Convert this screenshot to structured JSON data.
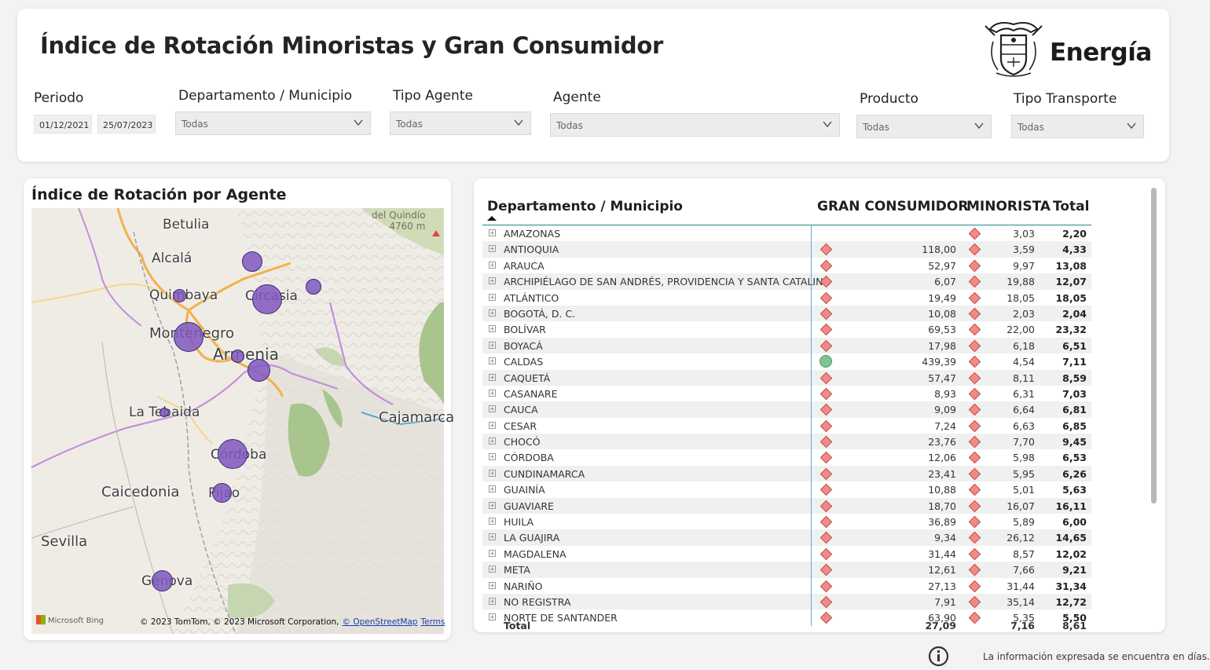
{
  "header": {
    "title": "Índice de Rotación Minoristas y Gran Consumidor",
    "logo_text": "Energía"
  },
  "filters": {
    "periodo": {
      "label": "Periodo",
      "start": "01/12/2021",
      "end": "25/07/2023"
    },
    "departamento": {
      "label": "Departamento / Municipio",
      "value": "Todas"
    },
    "tipo_agente": {
      "label": "Tipo Agente",
      "value": "Todas"
    },
    "agente": {
      "label": "Agente",
      "value": "Todas"
    },
    "producto": {
      "label": "Producto",
      "value": "Todas"
    },
    "tipo_transporte": {
      "label": "Tipo Transporte",
      "value": "Todas"
    }
  },
  "map": {
    "title": "Índice de Rotación por Agente",
    "cities": [
      "Betulia",
      "Alcalá",
      "Quimbaya",
      "Circasia",
      "Montenegro",
      "Armenia",
      "La Tebaida",
      "Cajamarca",
      "Córdoba",
      "Caicedonia",
      "Pijao",
      "Sevilla",
      "Genova"
    ],
    "peak_label": "del Quindío",
    "peak_elevation": "4760 m",
    "bing_label": "Microsoft Bing",
    "attribution": "© 2023 TomTom, © 2023 Microsoft Corporation,",
    "osm_link": "© OpenStreetMap",
    "terms_link": "Terms"
  },
  "table": {
    "columns": [
      "Departamento / Municipio",
      "GRAN CONSUMIDOR",
      "MINORISTA",
      "Total"
    ],
    "rows": [
      {
        "name": "AMAZONAS",
        "gc": "",
        "gc_icon": "none",
        "mi": "3,03",
        "total": "2,20"
      },
      {
        "name": "ANTIOQUIA",
        "gc": "118,00",
        "gc_icon": "diamond",
        "mi": "3,59",
        "total": "4,33"
      },
      {
        "name": "ARAUCA",
        "gc": "52,97",
        "gc_icon": "diamond",
        "mi": "9,97",
        "total": "13,08"
      },
      {
        "name": "ARCHIPIÉLAGO DE SAN ANDRÉS, PROVIDENCIA Y SANTA CATALINA",
        "gc": "6,07",
        "gc_icon": "diamond",
        "mi": "19,88",
        "total": "12,07"
      },
      {
        "name": "ATLÁNTICO",
        "gc": "19,49",
        "gc_icon": "diamond",
        "mi": "18,05",
        "total": "18,05"
      },
      {
        "name": "BOGOTÁ, D. C.",
        "gc": "10,08",
        "gc_icon": "diamond",
        "mi": "2,03",
        "total": "2,04"
      },
      {
        "name": "BOLÍVAR",
        "gc": "69,53",
        "gc_icon": "diamond",
        "mi": "22,00",
        "total": "23,32"
      },
      {
        "name": "BOYACÁ",
        "gc": "17,98",
        "gc_icon": "diamond",
        "mi": "6,18",
        "total": "6,51"
      },
      {
        "name": "CALDAS",
        "gc": "439,39",
        "gc_icon": "circle",
        "mi": "4,54",
        "total": "7,11"
      },
      {
        "name": "CAQUETÁ",
        "gc": "57,47",
        "gc_icon": "diamond",
        "mi": "8,11",
        "total": "8,59"
      },
      {
        "name": "CASANARE",
        "gc": "8,93",
        "gc_icon": "diamond",
        "mi": "6,31",
        "total": "7,03"
      },
      {
        "name": "CAUCA",
        "gc": "9,09",
        "gc_icon": "diamond",
        "mi": "6,64",
        "total": "6,81"
      },
      {
        "name": "CESAR",
        "gc": "7,24",
        "gc_icon": "diamond",
        "mi": "6,63",
        "total": "6,85"
      },
      {
        "name": "CHOCÓ",
        "gc": "23,76",
        "gc_icon": "diamond",
        "mi": "7,70",
        "total": "9,45"
      },
      {
        "name": "CÓRDOBA",
        "gc": "12,06",
        "gc_icon": "diamond",
        "mi": "5,98",
        "total": "6,53"
      },
      {
        "name": "CUNDINAMARCA",
        "gc": "23,41",
        "gc_icon": "diamond",
        "mi": "5,95",
        "total": "6,26"
      },
      {
        "name": "GUAINÍA",
        "gc": "10,88",
        "gc_icon": "diamond",
        "mi": "5,01",
        "total": "5,63"
      },
      {
        "name": "GUAVIARE",
        "gc": "18,70",
        "gc_icon": "diamond",
        "mi": "16,07",
        "total": "16,11"
      },
      {
        "name": "HUILA",
        "gc": "36,89",
        "gc_icon": "diamond",
        "mi": "5,89",
        "total": "6,00"
      },
      {
        "name": "LA GUAJIRA",
        "gc": "9,34",
        "gc_icon": "diamond",
        "mi": "26,12",
        "total": "14,65"
      },
      {
        "name": "MAGDALENA",
        "gc": "31,44",
        "gc_icon": "diamond",
        "mi": "8,57",
        "total": "12,02"
      },
      {
        "name": "META",
        "gc": "12,61",
        "gc_icon": "diamond",
        "mi": "7,66",
        "total": "9,21"
      },
      {
        "name": "NARIÑO",
        "gc": "27,13",
        "gc_icon": "diamond",
        "mi": "31,44",
        "total": "31,34"
      },
      {
        "name": "NO REGISTRA",
        "gc": "7,91",
        "gc_icon": "diamond",
        "mi": "35,14",
        "total": "12,72"
      },
      {
        "name": "NORTE DE SANTANDER",
        "gc": "63,90",
        "gc_icon": "diamond",
        "mi": "5,35",
        "total": "5,50"
      }
    ],
    "total": {
      "label": "Total",
      "gc": "27,09",
      "mi": "7,16",
      "total": "8,61"
    }
  },
  "footer": {
    "note": "La información expresada se encuentra en días."
  },
  "colors": {
    "diamond_fill": "#f08a86",
    "circle_fill": "#7dc48f",
    "bubble": "#8058be",
    "header_line": "#1f8a8a"
  }
}
